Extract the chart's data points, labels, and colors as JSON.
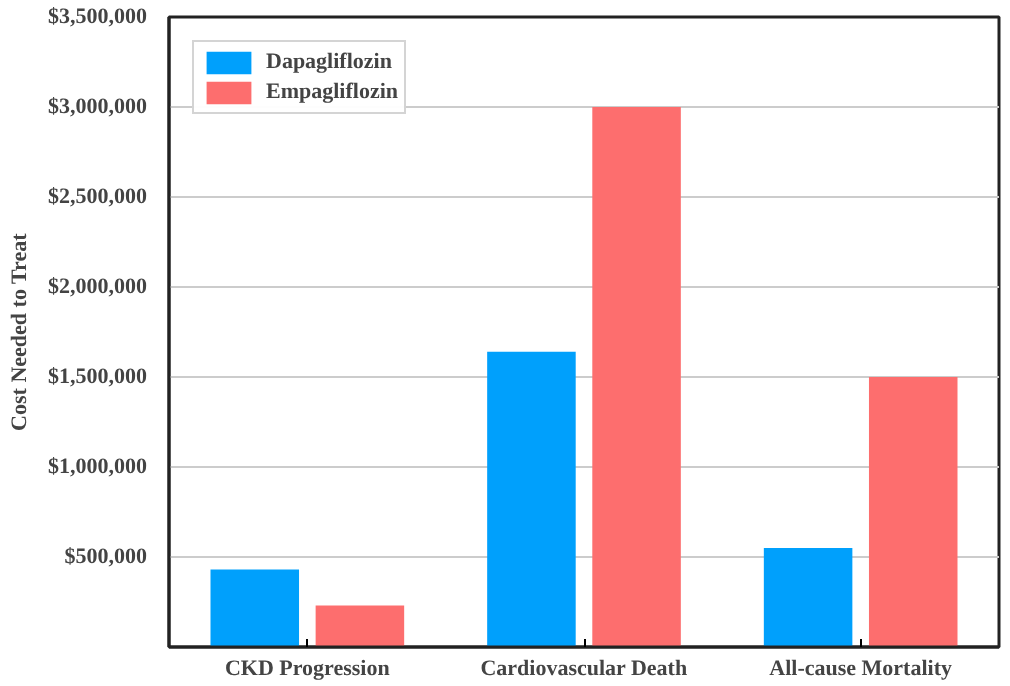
{
  "chart_data": {
    "type": "bar",
    "ylabel": "Cost Needed to Treat",
    "categories": [
      "CKD Progression",
      "Cardiovascular Death",
      "All-cause Mortality"
    ],
    "series": [
      {
        "name": "Dapagliflozin",
        "color": "#00a0fc",
        "values": [
          430000,
          1640000,
          550000
        ]
      },
      {
        "name": "Empagliflozin",
        "color": "#fd6e6e",
        "values": [
          230000,
          3000000,
          1500000
        ]
      }
    ],
    "ylim": [
      0,
      3500000
    ],
    "yticks": [
      {
        "value": 500000,
        "label": "$500,000"
      },
      {
        "value": 1000000,
        "label": "$1,000,000"
      },
      {
        "value": 1500000,
        "label": "$1,500,000"
      },
      {
        "value": 2000000,
        "label": "$2,000,000"
      },
      {
        "value": 2500000,
        "label": "$2,500,000"
      },
      {
        "value": 3000000,
        "label": "$3,000,000"
      },
      {
        "value": 3500000,
        "label": "$3,500,000"
      }
    ],
    "grid": "y",
    "legend": "top left"
  }
}
